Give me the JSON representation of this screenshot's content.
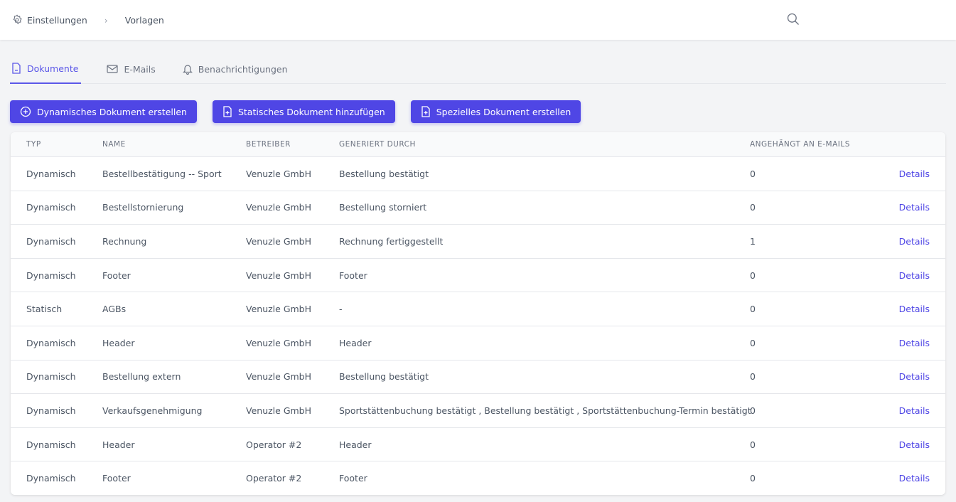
{
  "breadcrumb": {
    "items": [
      "Einstellungen",
      "Vorlagen"
    ]
  },
  "tabs": [
    {
      "label": "Dokumente",
      "icon": "document-icon",
      "active": true
    },
    {
      "label": "E-Mails",
      "icon": "mail-icon"
    },
    {
      "label": "Benachrichtigungen",
      "icon": "bell-icon"
    }
  ],
  "buttons": [
    "Dynamisches Dokument erstellen",
    "Statisches Dokument hinzufügen",
    "Spezielles Dokument erstellen"
  ],
  "accent": "#4f46e5",
  "table": {
    "columns": [
      "TYP",
      "NAME",
      "BETREIBER",
      "GENERIERT DURCH",
      "ANGEHÄNGT AN E-MAILS"
    ],
    "action_label": "Details",
    "rows": [
      [
        "Dynamisch",
        "Bestellbestätigung -- Sport",
        "Venuzle GmbH",
        "Bestellung bestätigt",
        "0"
      ],
      [
        "Dynamisch",
        "Bestellstornierung",
        "Venuzle GmbH",
        "Bestellung storniert",
        "0"
      ],
      [
        "Dynamisch",
        "Rechnung",
        "Venuzle GmbH",
        "Rechnung fertiggestellt",
        "1"
      ],
      [
        "Dynamisch",
        "Footer",
        "Venuzle GmbH",
        "Footer",
        "0"
      ],
      [
        "Statisch",
        "AGBs",
        "Venuzle GmbH",
        "-",
        "0"
      ],
      [
        "Dynamisch",
        "Header",
        "Venuzle GmbH",
        "Header",
        "0"
      ],
      [
        "Dynamisch",
        "Bestellung extern",
        "Venuzle GmbH",
        "Bestellung bestätigt",
        "0"
      ],
      [
        "Dynamisch",
        "Verkaufsgenehmigung",
        "Venuzle GmbH",
        "Sportstättenbuchung bestätigt , Bestellung bestätigt , Sportstättenbuchung-Termin bestätigt",
        "0"
      ],
      [
        "Dynamisch",
        "Header",
        "Operator #2",
        "Header",
        "0"
      ],
      [
        "Dynamisch",
        "Footer",
        "Operator #2",
        "Footer",
        "0"
      ]
    ]
  }
}
